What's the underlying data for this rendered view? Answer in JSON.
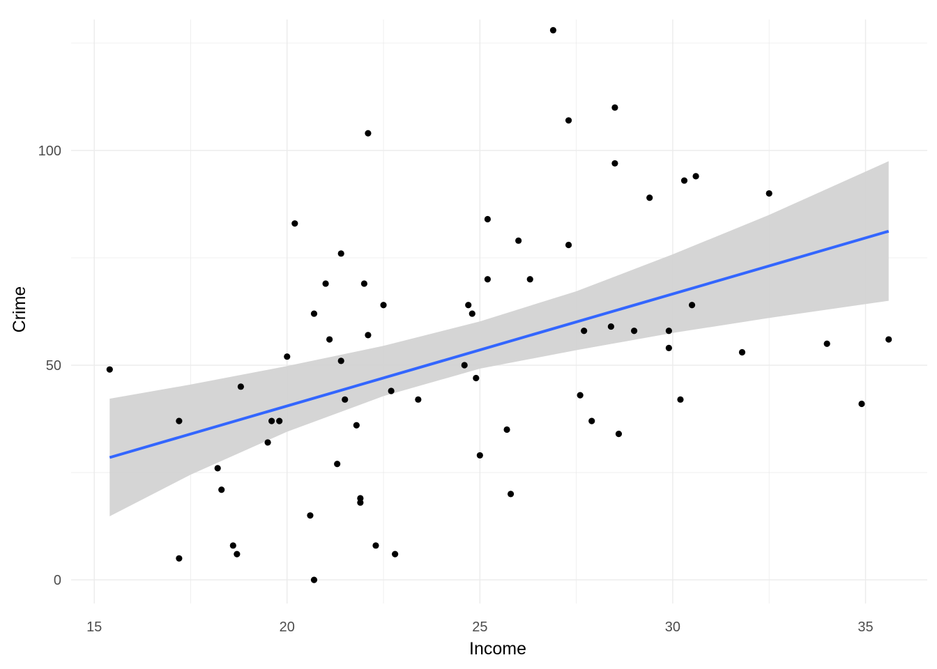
{
  "chart_data": {
    "type": "scatter",
    "xlabel": "Income",
    "ylabel": "Crime",
    "xlim": [
      14.4,
      36.6
    ],
    "ylim": [
      -5.5,
      130.5
    ],
    "grid": true,
    "x_ticks": [
      15,
      20,
      25,
      30,
      35
    ],
    "x_tick_labels": [
      "15",
      "20",
      "25",
      "30",
      "35"
    ],
    "y_ticks": [
      0,
      50,
      100
    ],
    "y_tick_labels": [
      "0",
      "50",
      "100"
    ],
    "colors": {
      "points": "#000000",
      "trend_line": "#3366FF",
      "ribbon": "#D3D3D3",
      "grid": "#EBEBEB"
    },
    "series": [
      {
        "values": [
          {
            "x": 15.4,
            "y": 49
          },
          {
            "x": 17.2,
            "y": 37
          },
          {
            "x": 17.2,
            "y": 5
          },
          {
            "x": 18.2,
            "y": 26
          },
          {
            "x": 18.3,
            "y": 21
          },
          {
            "x": 18.6,
            "y": 8
          },
          {
            "x": 18.7,
            "y": 6
          },
          {
            "x": 18.8,
            "y": 45
          },
          {
            "x": 19.5,
            "y": 32
          },
          {
            "x": 19.6,
            "y": 37
          },
          {
            "x": 19.8,
            "y": 37
          },
          {
            "x": 20.0,
            "y": 52
          },
          {
            "x": 20.2,
            "y": 83
          },
          {
            "x": 20.6,
            "y": 15
          },
          {
            "x": 20.7,
            "y": 62
          },
          {
            "x": 20.7,
            "y": 0
          },
          {
            "x": 21.0,
            "y": 69
          },
          {
            "x": 21.1,
            "y": 56
          },
          {
            "x": 21.3,
            "y": 27
          },
          {
            "x": 21.4,
            "y": 76
          },
          {
            "x": 21.4,
            "y": 51
          },
          {
            "x": 21.5,
            "y": 42
          },
          {
            "x": 21.8,
            "y": 36
          },
          {
            "x": 21.9,
            "y": 19
          },
          {
            "x": 21.9,
            "y": 18
          },
          {
            "x": 22.0,
            "y": 69
          },
          {
            "x": 22.1,
            "y": 104
          },
          {
            "x": 22.1,
            "y": 57
          },
          {
            "x": 22.3,
            "y": 8
          },
          {
            "x": 22.5,
            "y": 64
          },
          {
            "x": 22.7,
            "y": 44
          },
          {
            "x": 22.8,
            "y": 6
          },
          {
            "x": 23.4,
            "y": 42
          },
          {
            "x": 24.6,
            "y": 50
          },
          {
            "x": 24.7,
            "y": 64
          },
          {
            "x": 24.8,
            "y": 62
          },
          {
            "x": 24.9,
            "y": 47
          },
          {
            "x": 25.0,
            "y": 29
          },
          {
            "x": 25.2,
            "y": 84
          },
          {
            "x": 25.2,
            "y": 70
          },
          {
            "x": 25.7,
            "y": 35
          },
          {
            "x": 25.8,
            "y": 20
          },
          {
            "x": 26.0,
            "y": 79
          },
          {
            "x": 26.3,
            "y": 70
          },
          {
            "x": 26.9,
            "y": 128
          },
          {
            "x": 27.3,
            "y": 107
          },
          {
            "x": 27.3,
            "y": 78
          },
          {
            "x": 27.6,
            "y": 43
          },
          {
            "x": 27.7,
            "y": 58
          },
          {
            "x": 27.9,
            "y": 37
          },
          {
            "x": 28.4,
            "y": 59
          },
          {
            "x": 28.5,
            "y": 110
          },
          {
            "x": 28.5,
            "y": 97
          },
          {
            "x": 28.6,
            "y": 34
          },
          {
            "x": 29.0,
            "y": 58
          },
          {
            "x": 29.4,
            "y": 89
          },
          {
            "x": 29.9,
            "y": 58
          },
          {
            "x": 29.9,
            "y": 54
          },
          {
            "x": 30.2,
            "y": 42
          },
          {
            "x": 30.3,
            "y": 93
          },
          {
            "x": 30.5,
            "y": 64
          },
          {
            "x": 30.6,
            "y": 94
          },
          {
            "x": 31.8,
            "y": 53
          },
          {
            "x": 32.5,
            "y": 90
          },
          {
            "x": 34.0,
            "y": 55
          },
          {
            "x": 34.9,
            "y": 41
          },
          {
            "x": 35.6,
            "y": 56
          }
        ]
      }
    ],
    "trend_line": {
      "x": [
        15.4,
        35.6
      ],
      "y": [
        28.5,
        81.2
      ]
    },
    "confidence_band": {
      "x": [
        15.4,
        17.5,
        20.0,
        22.5,
        25.0,
        27.5,
        30.0,
        32.5,
        35.6
      ],
      "lower": [
        14.8,
        24.5,
        34.5,
        42.8,
        49.2,
        53.5,
        57.5,
        61.0,
        65.0
      ],
      "upper": [
        42.2,
        45.5,
        49.8,
        54.5,
        60.2,
        67.2,
        75.8,
        85.0,
        97.5
      ]
    }
  }
}
